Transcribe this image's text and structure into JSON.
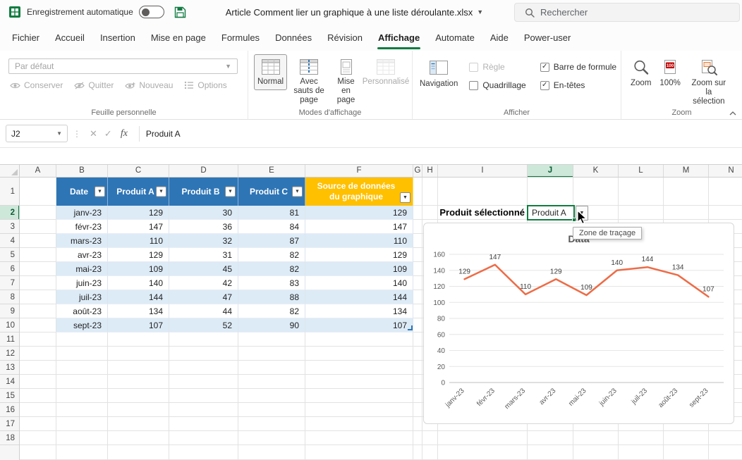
{
  "titlebar": {
    "autosave_label": "Enregistrement automatique",
    "autosave_on": false,
    "doc_title": "Article Comment lier un graphique à une liste déroulante.xlsx",
    "search_placeholder": "Rechercher"
  },
  "ribbon_tabs": {
    "labels": [
      "Fichier",
      "Accueil",
      "Insertion",
      "Mise en page",
      "Formules",
      "Données",
      "Révision",
      "Affichage",
      "Automate",
      "Aide",
      "Power-user"
    ],
    "selected": "Affichage"
  },
  "ribbon": {
    "groups": [
      {
        "label": "Feuille personnelle",
        "dropdown_value": "Par défaut",
        "buttons": [
          "Conserver",
          "Quitter",
          "Nouveau",
          "Options"
        ]
      },
      {
        "label": "Modes d'affichage",
        "buttons": [
          "Normal",
          "Avec sauts de page",
          "Mise en page",
          "Personnalisé"
        ],
        "selected_button": "Normal"
      },
      {
        "label": "Afficher",
        "nav_button": "Navigation",
        "checkboxes": [
          {
            "label": "Règle",
            "checked": false,
            "disabled": true
          },
          {
            "label": "Quadrillage",
            "checked": false,
            "disabled": false
          },
          {
            "label": "Barre de formule",
            "checked": true,
            "disabled": false
          },
          {
            "label": "En-têtes",
            "checked": true,
            "disabled": false
          }
        ]
      },
      {
        "label": "Zoom",
        "buttons": [
          "Zoom",
          "100%",
          "Zoom sur la sélection"
        ]
      }
    ]
  },
  "formula_bar": {
    "name_box": "J2",
    "fx": "fx",
    "content": "Produit A"
  },
  "sheet": {
    "col_headers": [
      "A",
      "B",
      "C",
      "D",
      "E",
      "F",
      "G",
      "H",
      "I",
      "J",
      "K",
      "L",
      "M",
      "N"
    ],
    "row_headers": [
      1,
      2,
      3,
      4,
      5,
      6,
      7,
      8,
      9,
      10,
      11,
      12,
      13,
      14,
      15,
      16,
      17,
      18
    ],
    "selected_col": "J",
    "selected_row": 2
  },
  "table": {
    "headers": [
      "Date",
      "Produit A",
      "Produit B",
      "Produit C",
      "Source de données du graphique"
    ],
    "header_blue": "#2E75B6",
    "header_orange": "#FFC000",
    "band_color": "#DDEBF7",
    "rows": [
      [
        "janv-23",
        "129",
        "30",
        "81",
        "129"
      ],
      [
        "févr-23",
        "147",
        "36",
        "84",
        "147"
      ],
      [
        "mars-23",
        "110",
        "32",
        "87",
        "110"
      ],
      [
        "avr-23",
        "129",
        "31",
        "82",
        "129"
      ],
      [
        "mai-23",
        "109",
        "45",
        "82",
        "109"
      ],
      [
        "juin-23",
        "140",
        "42",
        "83",
        "140"
      ],
      [
        "juil-23",
        "144",
        "47",
        "88",
        "144"
      ],
      [
        "août-23",
        "134",
        "44",
        "82",
        "134"
      ],
      [
        "sept-23",
        "107",
        "52",
        "90",
        "107"
      ]
    ]
  },
  "selector": {
    "label": "Produit sélectionné",
    "value": "Produit A"
  },
  "tooltip": {
    "text": "Zone de traçage"
  },
  "accent_green": "#107C41",
  "chart_data": {
    "type": "line",
    "title": "Data",
    "categories": [
      "janv-23",
      "févr-23",
      "mars-23",
      "avr-23",
      "mai-23",
      "juin-23",
      "juil-23",
      "août-23",
      "sept-23"
    ],
    "series": [
      {
        "name": "Produit A",
        "values": [
          129,
          147,
          110,
          129,
          109,
          140,
          144,
          134,
          107
        ]
      }
    ],
    "ylim": [
      0,
      160
    ],
    "ytick_step": 20,
    "grid": true,
    "legend": "none",
    "data_labels": true,
    "line_color": "#ED6C47",
    "axis_text_color": "#595959",
    "title_color": "#595959"
  }
}
